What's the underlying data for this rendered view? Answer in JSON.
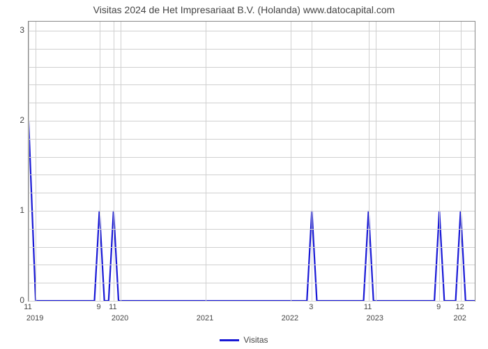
{
  "chart": {
    "type": "line",
    "title": "Visitas 2024 de Het Impresariaat B.V. (Holanda) www.datocapital.com",
    "title_fontsize": 14,
    "title_color": "#444444",
    "background_color": "#ffffff",
    "plot_border_color": "#888888",
    "grid_color": "#d0d0d0",
    "ylim": [
      0,
      3.1
    ],
    "yticks": [
      0,
      1,
      2,
      3
    ],
    "minor_y_steps": 5,
    "xlim_months": [
      0,
      63
    ],
    "year_ticks": [
      {
        "pos": 1,
        "label": "2019"
      },
      {
        "pos": 13,
        "label": "2020"
      },
      {
        "pos": 25,
        "label": "2021"
      },
      {
        "pos": 37,
        "label": "2022"
      },
      {
        "pos": 49,
        "label": "2023"
      },
      {
        "pos": 61,
        "label": "202"
      }
    ],
    "month_ticks": [
      {
        "pos": 0,
        "label": "11"
      },
      {
        "pos": 10,
        "label": "9"
      },
      {
        "pos": 12,
        "label": "11"
      },
      {
        "pos": 40,
        "label": "3"
      },
      {
        "pos": 48,
        "label": "11"
      },
      {
        "pos": 58,
        "label": "9"
      },
      {
        "pos": 61,
        "label": "12"
      }
    ],
    "vgrid_positions": [
      0,
      1,
      10,
      12,
      13,
      25,
      37,
      40,
      48,
      49,
      58,
      61
    ],
    "series": {
      "label": "Visitas",
      "color": "#1818d6",
      "line_width": 2.2,
      "data": [
        {
          "x": 0,
          "y": 2
        },
        {
          "x": 1,
          "y": 0
        },
        {
          "x": 9.3,
          "y": 0
        },
        {
          "x": 10,
          "y": 1
        },
        {
          "x": 10.7,
          "y": 0
        },
        {
          "x": 11.3,
          "y": 0
        },
        {
          "x": 12,
          "y": 1
        },
        {
          "x": 12.7,
          "y": 0
        },
        {
          "x": 39.3,
          "y": 0
        },
        {
          "x": 40,
          "y": 1
        },
        {
          "x": 40.7,
          "y": 0
        },
        {
          "x": 47.3,
          "y": 0
        },
        {
          "x": 48,
          "y": 1
        },
        {
          "x": 48.7,
          "y": 0
        },
        {
          "x": 57.3,
          "y": 0
        },
        {
          "x": 58,
          "y": 1
        },
        {
          "x": 58.7,
          "y": 0
        },
        {
          "x": 60.3,
          "y": 0
        },
        {
          "x": 61,
          "y": 1
        },
        {
          "x": 61.7,
          "y": 0
        },
        {
          "x": 63,
          "y": 0
        }
      ]
    }
  }
}
